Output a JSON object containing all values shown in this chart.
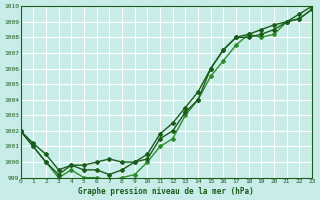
{
  "title": "Graphe pression niveau de la mer (hPa)",
  "bg_color": "#c8ece8",
  "grid_color": "#ffffff",
  "line_color_dark": "#1a5c1a",
  "line_color_medium": "#2d8c2d",
  "xlim": [
    0,
    23
  ],
  "ylim": [
    999,
    1010
  ],
  "xticks": [
    0,
    1,
    2,
    3,
    4,
    5,
    6,
    7,
    8,
    9,
    10,
    11,
    12,
    13,
    14,
    15,
    16,
    17,
    18,
    19,
    20,
    21,
    22,
    23
  ],
  "yticks": [
    999,
    1000,
    1001,
    1002,
    1003,
    1004,
    1005,
    1006,
    1007,
    1008,
    1009,
    1010
  ],
  "series": [
    [
      1002,
      1001,
      1000,
      999,
      999.5,
      999,
      999,
      998.8,
      999,
      999.2,
      1000,
      1001,
      1001.5,
      1003,
      1004,
      1005.5,
      1006.5,
      1007.5,
      1008.2,
      1008,
      1008.2,
      1009,
      1009.2,
      1009.8
    ],
    [
      1002,
      1001,
      1000,
      999.2,
      999.8,
      999.5,
      999.5,
      999.2,
      999.5,
      1000,
      1000.2,
      1001.5,
      1002,
      1003.2,
      1004,
      1006,
      1007.2,
      1008,
      1008,
      1008.2,
      1008.5,
      1009,
      1009.2,
      1009.8
    ],
    [
      1002,
      1001.2,
      1000.5,
      999.5,
      999.8,
      999.8,
      1000,
      1000.2,
      1000,
      1000,
      1000.5,
      1001.8,
      1002.5,
      1003.5,
      1004.5,
      1006,
      1007.2,
      1008,
      1008.2,
      1008.5,
      1008.8,
      1009,
      1009.5,
      1010
    ]
  ]
}
